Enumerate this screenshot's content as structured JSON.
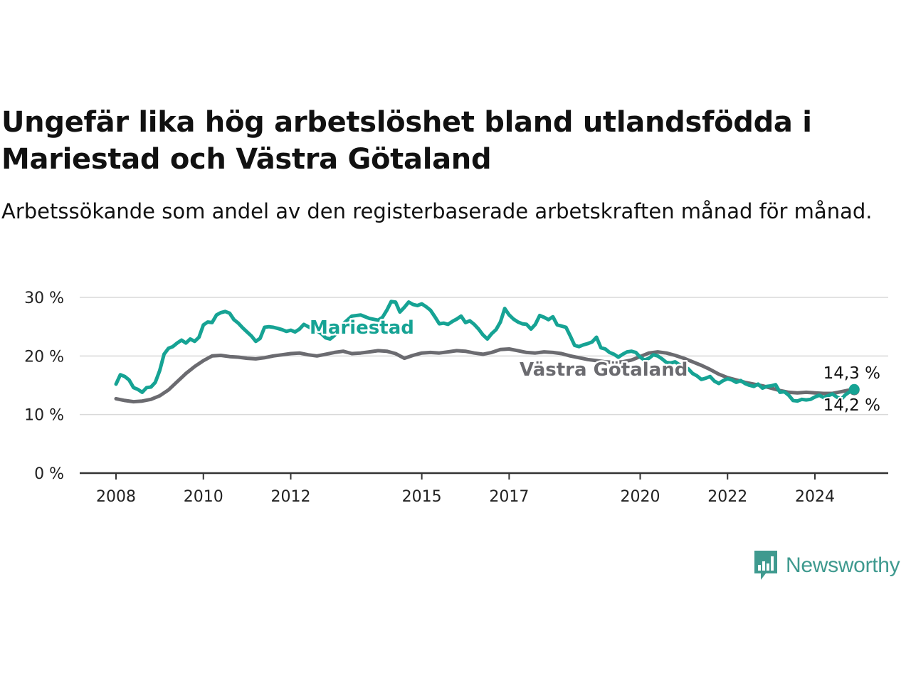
{
  "title": "Ungefär lika hög arbetslöshet bland utlandsfödda i Mariestad och Västra Götaland",
  "subtitle": "Arbetssökande som andel av den registerbaserade arbetskraften månad för månad.",
  "brand": {
    "name": "Newsworthy",
    "icon": "bar-chart-speech-bubble-icon",
    "color": "#3f9a8f"
  },
  "chart_data": {
    "type": "line",
    "xlim": [
      2008,
      2025.5
    ],
    "ylim": [
      0,
      30
    ],
    "grid": true,
    "y_ticks": [
      {
        "value": 0,
        "label": "0 %"
      },
      {
        "value": 10,
        "label": "10 %"
      },
      {
        "value": 20,
        "label": "20 %"
      },
      {
        "value": 30,
        "label": "30 %"
      }
    ],
    "x_ticks": [
      {
        "value": 2008,
        "label": "2008"
      },
      {
        "value": 2010,
        "label": "2010"
      },
      {
        "value": 2012,
        "label": "2012"
      },
      {
        "value": 2015,
        "label": "2015"
      },
      {
        "value": 2017,
        "label": "2017"
      },
      {
        "value": 2020,
        "label": "2020"
      },
      {
        "value": 2022,
        "label": "2022"
      },
      {
        "value": 2024,
        "label": "2024"
      }
    ],
    "series": [
      {
        "name": "Västra Götaland",
        "color": "#6b6b70",
        "end_label": "14,2 %",
        "points": [
          [
            2008.0,
            12.7
          ],
          [
            2008.2,
            12.4
          ],
          [
            2008.4,
            12.2
          ],
          [
            2008.6,
            12.3
          ],
          [
            2008.8,
            12.6
          ],
          [
            2009.0,
            13.2
          ],
          [
            2009.2,
            14.2
          ],
          [
            2009.4,
            15.6
          ],
          [
            2009.6,
            17.0
          ],
          [
            2009.8,
            18.2
          ],
          [
            2010.0,
            19.2
          ],
          [
            2010.2,
            20.0
          ],
          [
            2010.4,
            20.1
          ],
          [
            2010.6,
            19.9
          ],
          [
            2010.8,
            19.8
          ],
          [
            2011.0,
            19.6
          ],
          [
            2011.2,
            19.5
          ],
          [
            2011.4,
            19.7
          ],
          [
            2011.6,
            20.0
          ],
          [
            2011.8,
            20.2
          ],
          [
            2012.0,
            20.4
          ],
          [
            2012.2,
            20.5
          ],
          [
            2012.4,
            20.2
          ],
          [
            2012.6,
            20.0
          ],
          [
            2012.8,
            20.3
          ],
          [
            2013.0,
            20.6
          ],
          [
            2013.2,
            20.8
          ],
          [
            2013.4,
            20.4
          ],
          [
            2013.6,
            20.5
          ],
          [
            2013.8,
            20.7
          ],
          [
            2014.0,
            20.9
          ],
          [
            2014.2,
            20.8
          ],
          [
            2014.4,
            20.4
          ],
          [
            2014.6,
            19.6
          ],
          [
            2014.8,
            20.1
          ],
          [
            2015.0,
            20.5
          ],
          [
            2015.2,
            20.6
          ],
          [
            2015.4,
            20.5
          ],
          [
            2015.6,
            20.7
          ],
          [
            2015.8,
            20.9
          ],
          [
            2016.0,
            20.8
          ],
          [
            2016.2,
            20.5
          ],
          [
            2016.4,
            20.3
          ],
          [
            2016.6,
            20.6
          ],
          [
            2016.8,
            21.1
          ],
          [
            2017.0,
            21.2
          ],
          [
            2017.2,
            20.9
          ],
          [
            2017.4,
            20.6
          ],
          [
            2017.6,
            20.5
          ],
          [
            2017.8,
            20.7
          ],
          [
            2018.0,
            20.6
          ],
          [
            2018.2,
            20.4
          ],
          [
            2018.4,
            20.0
          ],
          [
            2018.6,
            19.7
          ],
          [
            2018.8,
            19.4
          ],
          [
            2019.0,
            19.2
          ],
          [
            2019.2,
            19.0
          ],
          [
            2019.4,
            18.9
          ],
          [
            2019.6,
            19.0
          ],
          [
            2019.8,
            19.3
          ],
          [
            2020.0,
            19.9
          ],
          [
            2020.2,
            20.5
          ],
          [
            2020.4,
            20.7
          ],
          [
            2020.6,
            20.5
          ],
          [
            2020.8,
            20.1
          ],
          [
            2021.0,
            19.6
          ],
          [
            2021.2,
            19.0
          ],
          [
            2021.4,
            18.4
          ],
          [
            2021.6,
            17.7
          ],
          [
            2021.8,
            16.9
          ],
          [
            2022.0,
            16.3
          ],
          [
            2022.2,
            15.9
          ],
          [
            2022.4,
            15.5
          ],
          [
            2022.6,
            15.2
          ],
          [
            2022.8,
            14.9
          ],
          [
            2023.0,
            14.5
          ],
          [
            2023.2,
            14.1
          ],
          [
            2023.4,
            13.8
          ],
          [
            2023.6,
            13.7
          ],
          [
            2023.8,
            13.8
          ],
          [
            2024.0,
            13.7
          ],
          [
            2024.2,
            13.6
          ],
          [
            2024.4,
            13.6
          ],
          [
            2024.6,
            13.9
          ],
          [
            2024.8,
            14.2
          ],
          [
            2024.9,
            14.2
          ]
        ]
      },
      {
        "name": "Mariestad",
        "color": "#16a394",
        "end_label": "14,3 %",
        "points": [
          [
            2008.0,
            15.2
          ],
          [
            2008.1,
            16.8
          ],
          [
            2008.2,
            16.5
          ],
          [
            2008.3,
            15.9
          ],
          [
            2008.4,
            14.6
          ],
          [
            2008.5,
            14.3
          ],
          [
            2008.6,
            13.8
          ],
          [
            2008.7,
            14.6
          ],
          [
            2008.8,
            14.7
          ],
          [
            2008.9,
            15.5
          ],
          [
            2009.0,
            17.5
          ],
          [
            2009.1,
            20.3
          ],
          [
            2009.2,
            21.3
          ],
          [
            2009.3,
            21.6
          ],
          [
            2009.4,
            22.2
          ],
          [
            2009.5,
            22.7
          ],
          [
            2009.6,
            22.2
          ],
          [
            2009.7,
            22.9
          ],
          [
            2009.8,
            22.5
          ],
          [
            2009.9,
            23.2
          ],
          [
            2010.0,
            25.3
          ],
          [
            2010.1,
            25.8
          ],
          [
            2010.2,
            25.7
          ],
          [
            2010.3,
            27.0
          ],
          [
            2010.4,
            27.4
          ],
          [
            2010.5,
            27.6
          ],
          [
            2010.6,
            27.3
          ],
          [
            2010.7,
            26.2
          ],
          [
            2010.8,
            25.6
          ],
          [
            2010.9,
            24.8
          ],
          [
            2011.0,
            24.1
          ],
          [
            2011.1,
            23.4
          ],
          [
            2011.2,
            22.5
          ],
          [
            2011.3,
            23.0
          ],
          [
            2011.4,
            24.9
          ],
          [
            2011.5,
            25.0
          ],
          [
            2011.6,
            24.9
          ],
          [
            2011.7,
            24.7
          ],
          [
            2011.8,
            24.5
          ],
          [
            2011.9,
            24.2
          ],
          [
            2012.0,
            24.4
          ],
          [
            2012.1,
            24.1
          ],
          [
            2012.2,
            24.6
          ],
          [
            2012.3,
            25.4
          ],
          [
            2012.4,
            25.0
          ],
          [
            2012.5,
            24.6
          ],
          [
            2012.6,
            24.3
          ],
          [
            2012.7,
            23.8
          ],
          [
            2012.8,
            23.1
          ],
          [
            2012.9,
            22.9
          ],
          [
            2013.0,
            23.5
          ],
          [
            2013.2,
            25.5
          ],
          [
            2013.4,
            26.8
          ],
          [
            2013.6,
            27.0
          ],
          [
            2013.8,
            26.4
          ],
          [
            2014.0,
            26.1
          ],
          [
            2014.1,
            26.6
          ],
          [
            2014.2,
            27.8
          ],
          [
            2014.3,
            29.3
          ],
          [
            2014.4,
            29.2
          ],
          [
            2014.5,
            27.5
          ],
          [
            2014.6,
            28.3
          ],
          [
            2014.7,
            29.2
          ],
          [
            2014.8,
            28.8
          ],
          [
            2014.9,
            28.6
          ],
          [
            2015.0,
            28.9
          ],
          [
            2015.1,
            28.4
          ],
          [
            2015.2,
            27.8
          ],
          [
            2015.3,
            26.7
          ],
          [
            2015.4,
            25.5
          ],
          [
            2015.5,
            25.6
          ],
          [
            2015.6,
            25.4
          ],
          [
            2015.7,
            25.9
          ],
          [
            2015.8,
            26.3
          ],
          [
            2015.9,
            26.8
          ],
          [
            2016.0,
            25.7
          ],
          [
            2016.1,
            26.0
          ],
          [
            2016.2,
            25.4
          ],
          [
            2016.3,
            24.6
          ],
          [
            2016.4,
            23.6
          ],
          [
            2016.5,
            22.9
          ],
          [
            2016.6,
            23.8
          ],
          [
            2016.7,
            24.5
          ],
          [
            2016.8,
            25.8
          ],
          [
            2016.9,
            28.1
          ],
          [
            2017.0,
            27.0
          ],
          [
            2017.1,
            26.3
          ],
          [
            2017.2,
            25.8
          ],
          [
            2017.3,
            25.5
          ],
          [
            2017.4,
            25.4
          ],
          [
            2017.5,
            24.6
          ],
          [
            2017.6,
            25.4
          ],
          [
            2017.7,
            26.9
          ],
          [
            2017.8,
            26.6
          ],
          [
            2017.9,
            26.2
          ],
          [
            2018.0,
            26.7
          ],
          [
            2018.1,
            25.3
          ],
          [
            2018.2,
            25.1
          ],
          [
            2018.3,
            24.9
          ],
          [
            2018.4,
            23.4
          ],
          [
            2018.5,
            21.8
          ],
          [
            2018.6,
            21.6
          ],
          [
            2018.7,
            21.9
          ],
          [
            2018.8,
            22.1
          ],
          [
            2018.9,
            22.4
          ],
          [
            2019.0,
            23.2
          ],
          [
            2019.1,
            21.4
          ],
          [
            2019.2,
            21.2
          ],
          [
            2019.3,
            20.6
          ],
          [
            2019.4,
            20.3
          ],
          [
            2019.5,
            19.8
          ],
          [
            2019.6,
            20.3
          ],
          [
            2019.7,
            20.7
          ],
          [
            2019.8,
            20.8
          ],
          [
            2019.9,
            20.6
          ],
          [
            2020.0,
            19.8
          ],
          [
            2020.1,
            19.3
          ],
          [
            2020.2,
            19.6
          ],
          [
            2020.3,
            20.2
          ],
          [
            2020.4,
            20.0
          ],
          [
            2020.5,
            19.5
          ],
          [
            2020.6,
            18.9
          ],
          [
            2020.7,
            18.8
          ],
          [
            2020.8,
            19.0
          ],
          [
            2020.9,
            18.5
          ],
          [
            2021.0,
            18.2
          ],
          [
            2021.1,
            17.8
          ],
          [
            2021.2,
            17.0
          ],
          [
            2021.3,
            16.6
          ],
          [
            2021.4,
            16.0
          ],
          [
            2021.5,
            16.2
          ],
          [
            2021.6,
            16.5
          ],
          [
            2021.7,
            15.7
          ],
          [
            2021.8,
            15.3
          ],
          [
            2021.9,
            15.8
          ],
          [
            2022.0,
            16.1
          ],
          [
            2022.1,
            15.9
          ],
          [
            2022.2,
            15.5
          ],
          [
            2022.3,
            15.8
          ],
          [
            2022.4,
            15.3
          ],
          [
            2022.5,
            15.0
          ],
          [
            2022.6,
            14.8
          ],
          [
            2022.7,
            15.2
          ],
          [
            2022.8,
            14.5
          ],
          [
            2022.9,
            14.8
          ],
          [
            2023.0,
            14.9
          ],
          [
            2023.1,
            15.1
          ],
          [
            2023.2,
            13.8
          ],
          [
            2023.3,
            13.9
          ],
          [
            2023.4,
            13.3
          ],
          [
            2023.5,
            12.4
          ],
          [
            2023.6,
            12.3
          ],
          [
            2023.7,
            12.6
          ],
          [
            2023.8,
            12.5
          ],
          [
            2023.9,
            12.6
          ],
          [
            2024.0,
            13.0
          ],
          [
            2024.1,
            13.3
          ],
          [
            2024.2,
            12.9
          ],
          [
            2024.3,
            13.2
          ],
          [
            2024.4,
            13.5
          ],
          [
            2024.5,
            13.0
          ],
          [
            2024.6,
            12.6
          ],
          [
            2024.7,
            13.4
          ],
          [
            2024.8,
            13.9
          ],
          [
            2024.9,
            14.3
          ]
        ]
      }
    ]
  }
}
